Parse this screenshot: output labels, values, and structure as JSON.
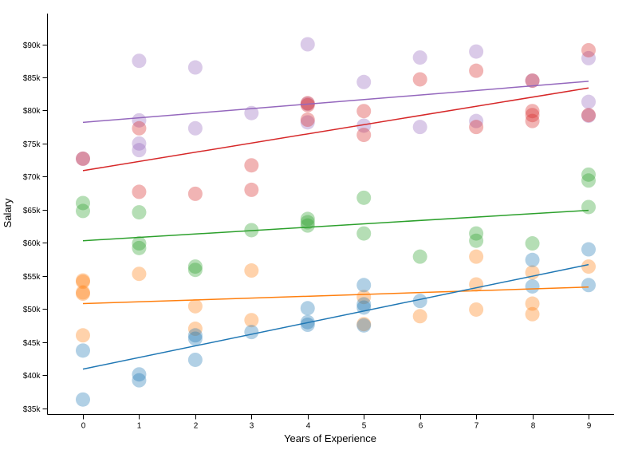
{
  "chart_data": {
    "type": "scatter",
    "title": "",
    "xlabel": "Years of Experience",
    "ylabel": "Salary",
    "xlim": [
      -0.65,
      9.45
    ],
    "ylim": [
      34000,
      93000
    ],
    "x_ticks": [
      0,
      1,
      2,
      3,
      4,
      5,
      6,
      7,
      8,
      9
    ],
    "y_ticks": [
      35000,
      40000,
      45000,
      50000,
      55000,
      60000,
      65000,
      70000,
      75000,
      80000,
      85000,
      90000
    ],
    "y_tick_labels": [
      "$35k",
      "$40k",
      "$45k",
      "$50k",
      "$55k",
      "$60k",
      "$65k",
      "$70k",
      "$75k",
      "$80k",
      "$85k",
      "$90k"
    ],
    "x_tick_labels": [
      "0",
      "1",
      "2",
      "3",
      "4",
      "5",
      "6",
      "7",
      "8",
      "9"
    ],
    "grid": false,
    "legend": "none",
    "series": [
      {
        "name": "purple",
        "color": "#9467bd",
        "trend": [
          [
            0,
            78200
          ],
          [
            9,
            84400
          ]
        ],
        "points": [
          [
            0,
            72700
          ],
          [
            1,
            87500
          ],
          [
            1,
            78500
          ],
          [
            1,
            75000
          ],
          [
            1,
            74000
          ],
          [
            2,
            86500
          ],
          [
            2,
            77300
          ],
          [
            3,
            79600
          ],
          [
            4,
            90000
          ],
          [
            4,
            81000
          ],
          [
            4,
            78200
          ],
          [
            5,
            84300
          ],
          [
            5,
            77700
          ],
          [
            6,
            88000
          ],
          [
            6,
            77500
          ],
          [
            7,
            88900
          ],
          [
            7,
            78400
          ],
          [
            8,
            84500
          ],
          [
            9,
            87900
          ],
          [
            9,
            81300
          ],
          [
            9,
            79200
          ]
        ]
      },
      {
        "name": "red",
        "color": "#d62728",
        "trend": [
          [
            0,
            70900
          ],
          [
            9,
            83400
          ]
        ],
        "points": [
          [
            0,
            72700
          ],
          [
            1,
            77300
          ],
          [
            1,
            67700
          ],
          [
            2,
            67400
          ],
          [
            3,
            71700
          ],
          [
            3,
            68000
          ],
          [
            4,
            81100
          ],
          [
            4,
            80800
          ],
          [
            4,
            78600
          ],
          [
            5,
            79900
          ],
          [
            5,
            76300
          ],
          [
            6,
            84700
          ],
          [
            7,
            86000
          ],
          [
            7,
            77500
          ],
          [
            8,
            84500
          ],
          [
            8,
            79900
          ],
          [
            8,
            79300
          ],
          [
            8,
            78400
          ],
          [
            9,
            89100
          ],
          [
            9,
            79300
          ]
        ]
      },
      {
        "name": "green",
        "color": "#2ca02c",
        "trend": [
          [
            0,
            60300
          ],
          [
            9,
            64900
          ]
        ],
        "points": [
          [
            0,
            66000
          ],
          [
            0,
            64800
          ],
          [
            1,
            64600
          ],
          [
            1,
            59900
          ],
          [
            1,
            59200
          ],
          [
            2,
            56400
          ],
          [
            2,
            55900
          ],
          [
            3,
            61900
          ],
          [
            4,
            63600
          ],
          [
            4,
            63100
          ],
          [
            4,
            62600
          ],
          [
            5,
            66800
          ],
          [
            5,
            61400
          ],
          [
            6,
            57900
          ],
          [
            7,
            61400
          ],
          [
            7,
            60300
          ],
          [
            8,
            59900
          ],
          [
            9,
            70300
          ],
          [
            9,
            69400
          ],
          [
            9,
            65400
          ]
        ]
      },
      {
        "name": "orange",
        "color": "#ff7f0e",
        "trend": [
          [
            0,
            50800
          ],
          [
            9,
            53300
          ]
        ],
        "points": [
          [
            0,
            54300
          ],
          [
            0,
            54100
          ],
          [
            0,
            52500
          ],
          [
            0,
            52300
          ],
          [
            0,
            46000
          ],
          [
            1,
            55300
          ],
          [
            2,
            50400
          ],
          [
            2,
            47000
          ],
          [
            3,
            55800
          ],
          [
            3,
            48300
          ],
          [
            5,
            51800
          ],
          [
            5,
            47700
          ],
          [
            6,
            48900
          ],
          [
            7,
            57900
          ],
          [
            7,
            53700
          ],
          [
            7,
            49900
          ],
          [
            8,
            55500
          ],
          [
            8,
            50800
          ],
          [
            8,
            49200
          ],
          [
            9,
            56400
          ]
        ]
      },
      {
        "name": "blue",
        "color": "#1f77b4",
        "trend": [
          [
            0,
            40900
          ],
          [
            9,
            56700
          ]
        ],
        "points": [
          [
            0,
            43700
          ],
          [
            0,
            36300
          ],
          [
            1,
            40100
          ],
          [
            1,
            39200
          ],
          [
            2,
            46000
          ],
          [
            2,
            45500
          ],
          [
            2,
            42300
          ],
          [
            3,
            46500
          ],
          [
            4,
            50100
          ],
          [
            4,
            48000
          ],
          [
            4,
            47600
          ],
          [
            5,
            53600
          ],
          [
            5,
            50700
          ],
          [
            5,
            50200
          ],
          [
            5,
            47500
          ],
          [
            6,
            51200
          ],
          [
            8,
            57400
          ],
          [
            8,
            53400
          ],
          [
            9,
            59000
          ],
          [
            9,
            53600
          ]
        ]
      }
    ]
  }
}
